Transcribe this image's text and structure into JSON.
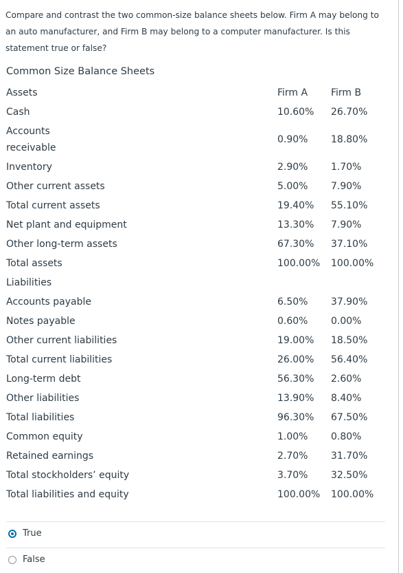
{
  "question": "Compare and contrast the two common-size balance sheets below. Firm A may belong to an auto manufacturer, and Firm B may belong to a computer manufacturer. Is this statement true or false?",
  "table": {
    "title": "Common Size Balance Sheets",
    "rows": [
      {
        "label": "Assets",
        "a": "Firm A",
        "b": "Firm B"
      },
      {
        "label": "Cash",
        "a": "10.60%",
        "b": "26.70%"
      },
      {
        "label": "Accounts receivable",
        "a": "0.90%",
        "b": "18.80%"
      },
      {
        "label": "Inventory",
        "a": "2.90%",
        "b": "1.70%"
      },
      {
        "label": "Other current assets",
        "a": "5.00%",
        "b": "7.90%"
      },
      {
        "label": "Total current assets",
        "a": "19.40%",
        "b": "55.10%"
      },
      {
        "label": "Net plant and equipment",
        "a": "13.30%",
        "b": "7.90%"
      },
      {
        "label": "Other long-term assets",
        "a": "67.30%",
        "b": "37.10%"
      },
      {
        "label": "Total assets",
        "a": "100.00%",
        "b": "100.00%"
      },
      {
        "label": "Liabilities",
        "a": "",
        "b": ""
      },
      {
        "label": "Accounts payable",
        "a": "6.50%",
        "b": "37.90%"
      },
      {
        "label": "Notes payable",
        "a": "0.60%",
        "b": "0.00%"
      },
      {
        "label": "Other current liabilities",
        "a": "19.00%",
        "b": "18.50%"
      },
      {
        "label": "Total current liabilities",
        "a": "26.00%",
        "b": "56.40%"
      },
      {
        "label": "Long-term debt",
        "a": "56.30%",
        "b": "2.60%"
      },
      {
        "label": "Other liabilities",
        "a": "13.90%",
        "b": "8.40%"
      },
      {
        "label": "Total liabilities",
        "a": "96.30%",
        "b": "67.50%"
      },
      {
        "label": "Common equity",
        "a": "1.00%",
        "b": "0.80%"
      },
      {
        "label": "Retained earnings",
        "a": "2.70%",
        "b": "31.70%"
      },
      {
        "label": "Total stockholders’ equity",
        "a": "3.70%",
        "b": "32.50%"
      },
      {
        "label": "Total liabilities and equity",
        "a": "100.00%",
        "b": "100.00%"
      }
    ]
  },
  "answers": {
    "options": [
      {
        "label": "True",
        "selected": true
      },
      {
        "label": "False",
        "selected": false
      }
    ],
    "accent_color": "#0770a3"
  }
}
